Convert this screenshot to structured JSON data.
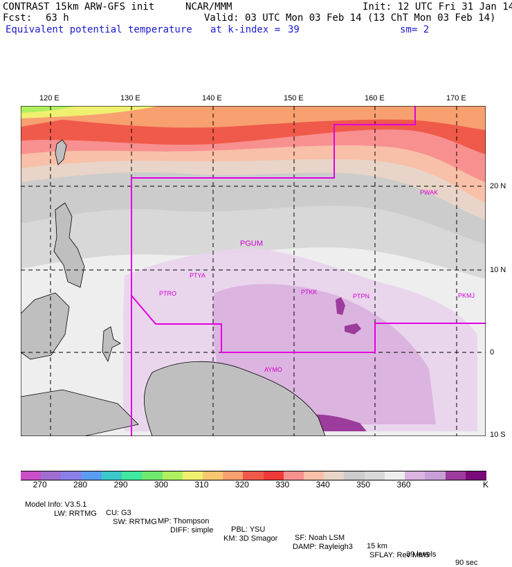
{
  "header": {
    "model": "CONTRAST 15km ARW-GFS init",
    "org": "NCAR/MMM",
    "init": "Init: 12 UTC Fri 31 Jan 14",
    "fcst_label": "Fcst:",
    "fcst_value": "63 h",
    "valid": "Valid: 03 UTC Mon 03 Feb 14 (13 ChT Mon 03 Feb 14)",
    "field": "Equivalent potential temperature",
    "level_label": "at k-index =",
    "level_value": "39",
    "smooth": "sm= 2"
  },
  "axes": {
    "lon_ticks": [
      "120 E",
      "130 E",
      "140 E",
      "150 E",
      "160 E",
      "170 E"
    ],
    "lat_ticks": [
      "20 N",
      "10 N",
      "0",
      "10 S"
    ]
  },
  "stations": [
    "PWAK",
    "PGUM",
    "PTYA",
    "PTRO",
    "PTKK",
    "PTPN",
    "PKMJ",
    "AYMO"
  ],
  "colorbar": {
    "colors": [
      "#c94ec8",
      "#a06ed0",
      "#8a80e8",
      "#5a9cf0",
      "#3cc8c8",
      "#40e8a0",
      "#70e870",
      "#b0f060",
      "#f0f070",
      "#f8c870",
      "#f8a070",
      "#f05a4a",
      "#f03a3a",
      "#f89090",
      "#f8c0a8",
      "#e8d4c8",
      "#cccccc",
      "#d8d8d8",
      "#eeeeee",
      "#dcb4e0",
      "#c8a0d8",
      "#9c3c9c",
      "#7a0a7a"
    ],
    "labels": [
      "270",
      "280",
      "290",
      "300",
      "310",
      "320",
      "330",
      "340",
      "350",
      "360"
    ],
    "unit": "K"
  },
  "model_info": {
    "line1": [
      "Model Info: V3.5.1",
      "CU: G3",
      "MP: Thompson",
      "PBL: YSU",
      "SF: Noah LSM",
      "15 km",
      "39 levels",
      "90 sec"
    ],
    "line2": [
      "LW: RRTMG",
      "SW: RRTMG",
      "DIFF: simple",
      "KM: 3D Smagor",
      "DAMP: Rayleigh3",
      "SFLAY: Rev MM5"
    ]
  }
}
